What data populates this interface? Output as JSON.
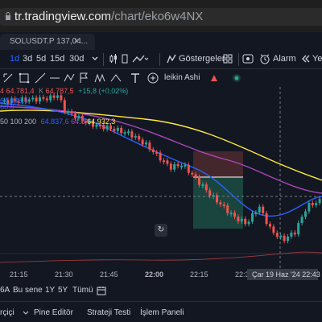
{
  "browser": {
    "url_host": "tr.tradingview.com",
    "url_path": "/chart/eko6w4NX"
  },
  "tab": {
    "title": "SOLUSDT.P 137,04...",
    "close_glyph": "×"
  },
  "toolbar": {
    "interval_1d": "1d",
    "interval_3d": "3d",
    "interval_5d": "5d",
    "interval_15d": "15d",
    "interval_30d": "30d",
    "indicators_label": "Göstergeler",
    "alarm_label": "Alarm",
    "replay_label": "Ye"
  },
  "drawbar": {
    "chart_type_label": "leikin Ashi"
  },
  "legend": {
    "row1_prefix": "4",
    "row1_a": "64.781,4",
    "row1_k_label": "K",
    "row1_k": "64.787,5",
    "row1_change": "+15,8 (+0,02%)",
    "row2": "64.848,4",
    "row3": "66.0",
    "row4_label": "50 100 200",
    "row4_v1": "64.837,6",
    "row4_v2": "64.8",
    "row4_v3": "64.932,3"
  },
  "time_axis": {
    "labels": [
      "21:15",
      "21:30",
      "21:45",
      "22:00",
      "22:15",
      "22:3"
    ],
    "cursor": "Çar 19 Haz '24   22:43"
  },
  "ranges": {
    "items": [
      "6A",
      "Bu sene",
      "1Y",
      "5Y",
      "Tümü"
    ]
  },
  "bottombar": {
    "screener": "rçiçi",
    "pine_editor": "Pine Editör",
    "strategy_tester": "Strateji Testi",
    "trading_panel": "İşlem Paneli"
  },
  "colors": {
    "up": "#26a69a",
    "down": "#ef5350",
    "ma_fast": "#2962ff",
    "ma_mid": "#ab47bc",
    "ma_slow": "#ffeb3b",
    "active_blue": "#2962ff"
  }
}
